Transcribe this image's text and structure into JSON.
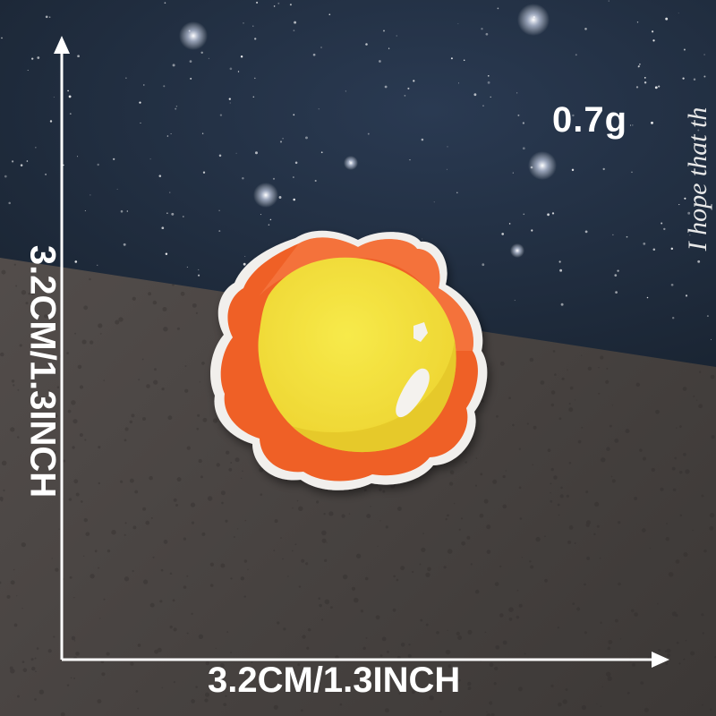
{
  "product_photo": {
    "weight_label": "0.7g",
    "width_label": "3.2CM/1.3INCH",
    "height_label": "3.2CM/1.3INCH",
    "card_text": "I hope that th",
    "subject": "sun-embroidered-patch-icon",
    "colors": {
      "patch_outer": "#f0642a",
      "patch_inner": "#f2e23c",
      "highlight": "#f4f2ee",
      "card_background": "#1f2c3f",
      "surface": "#4a4543",
      "dimension_lines": "#ffffff"
    }
  }
}
